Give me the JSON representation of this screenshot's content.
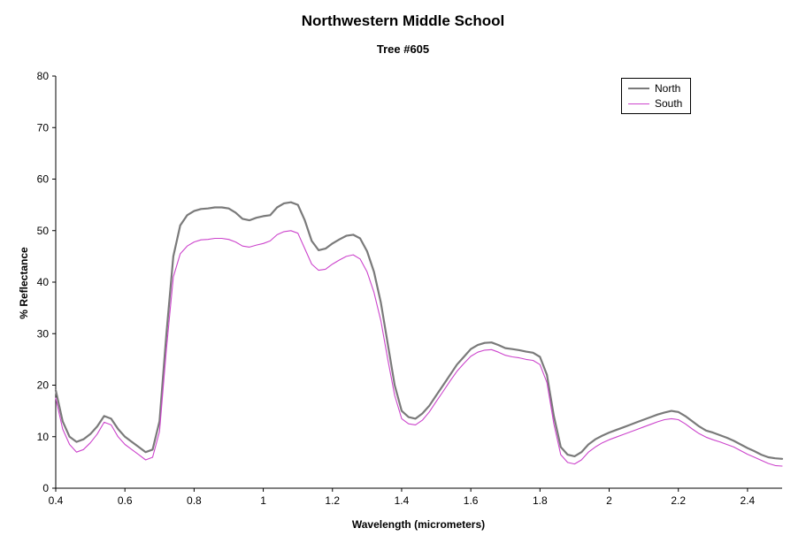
{
  "chart_data": {
    "type": "line",
    "title": "Northwestern Middle School",
    "subtitle": "Tree #605",
    "xlabel": "Wavelength (micrometers)",
    "ylabel": "% Reflectance",
    "xlim": [
      0.4,
      2.5
    ],
    "ylim": [
      0,
      80
    ],
    "x_ticks": [
      0.4,
      0.6,
      0.8,
      1,
      1.2,
      1.4,
      1.6,
      1.8,
      2,
      2.2,
      2.4
    ],
    "x_tick_labels": [
      "0.4",
      "0.6",
      "0.8",
      "1",
      "1.2",
      "1.4",
      "1.6",
      "1.8",
      "2",
      "2.2",
      "2.4"
    ],
    "y_ticks": [
      0,
      10,
      20,
      30,
      40,
      50,
      60,
      70,
      80
    ],
    "grid": false,
    "legend_position": "top-right",
    "axis_color": "#000000",
    "background_color": "#ffffff",
    "x": [
      0.4,
      0.42,
      0.44,
      0.46,
      0.48,
      0.5,
      0.52,
      0.54,
      0.56,
      0.58,
      0.6,
      0.62,
      0.64,
      0.66,
      0.68,
      0.7,
      0.72,
      0.74,
      0.76,
      0.78,
      0.8,
      0.82,
      0.84,
      0.86,
      0.88,
      0.9,
      0.92,
      0.94,
      0.96,
      0.98,
      1.0,
      1.02,
      1.04,
      1.06,
      1.08,
      1.1,
      1.12,
      1.14,
      1.16,
      1.18,
      1.2,
      1.22,
      1.24,
      1.26,
      1.28,
      1.3,
      1.32,
      1.34,
      1.36,
      1.38,
      1.4,
      1.42,
      1.44,
      1.46,
      1.48,
      1.5,
      1.52,
      1.54,
      1.56,
      1.58,
      1.6,
      1.62,
      1.64,
      1.66,
      1.68,
      1.7,
      1.72,
      1.74,
      1.76,
      1.78,
      1.8,
      1.82,
      1.84,
      1.86,
      1.88,
      1.9,
      1.92,
      1.94,
      1.96,
      1.98,
      2.0,
      2.02,
      2.04,
      2.06,
      2.08,
      2.1,
      2.12,
      2.14,
      2.16,
      2.18,
      2.2,
      2.22,
      2.24,
      2.26,
      2.28,
      2.3,
      2.32,
      2.34,
      2.36,
      2.38,
      2.4,
      2.42,
      2.44,
      2.46,
      2.48,
      2.5
    ],
    "series": [
      {
        "name": "North",
        "color": "#7a7a7a",
        "width": 2.2,
        "values": [
          19,
          13,
          10,
          9,
          9.5,
          10.5,
          12,
          14,
          13.5,
          11.5,
          10,
          9,
          8,
          7,
          7.5,
          13,
          30,
          45,
          51,
          53,
          53.8,
          54.2,
          54.3,
          54.5,
          54.5,
          54.3,
          53.5,
          52.3,
          52,
          52.5,
          52.8,
          53,
          54.5,
          55.3,
          55.5,
          55,
          52,
          48,
          46.2,
          46.5,
          47.5,
          48.3,
          49,
          49.2,
          48.5,
          46,
          42,
          36,
          28,
          20,
          15,
          13.8,
          13.5,
          14.5,
          16,
          18,
          20,
          22,
          24,
          25.5,
          27,
          27.8,
          28.2,
          28.3,
          27.8,
          27.2,
          27,
          26.8,
          26.5,
          26.3,
          25.5,
          22,
          14,
          8,
          6.5,
          6.2,
          7,
          8.5,
          9.5,
          10.2,
          10.8,
          11.3,
          11.8,
          12.3,
          12.8,
          13.3,
          13.8,
          14.3,
          14.7,
          15,
          14.8,
          14,
          13,
          12,
          11.2,
          10.8,
          10.3,
          9.8,
          9.2,
          8.5,
          7.8,
          7.2,
          6.5,
          6,
          5.8,
          5.7
        ]
      },
      {
        "name": "South",
        "color": "#cc44cc",
        "width": 1.1,
        "values": [
          17.5,
          11.5,
          8.5,
          7,
          7.5,
          8.8,
          10.5,
          12.8,
          12.3,
          10,
          8.5,
          7.5,
          6.5,
          5.5,
          6,
          11,
          27,
          41,
          45.5,
          47,
          47.8,
          48.2,
          48.3,
          48.5,
          48.5,
          48.3,
          47.8,
          47,
          46.8,
          47.2,
          47.5,
          48,
          49.2,
          49.8,
          50,
          49.5,
          46.5,
          43.5,
          42.3,
          42.5,
          43.5,
          44.3,
          45,
          45.3,
          44.5,
          42,
          38,
          32.5,
          25,
          18,
          13.5,
          12.5,
          12.3,
          13.2,
          14.8,
          16.8,
          18.8,
          20.8,
          22.7,
          24.2,
          25.6,
          26.4,
          26.8,
          26.9,
          26.4,
          25.8,
          25.5,
          25.3,
          25,
          24.8,
          24,
          20.5,
          12.5,
          6.5,
          5,
          4.7,
          5.5,
          7,
          8,
          8.8,
          9.4,
          9.9,
          10.4,
          10.9,
          11.4,
          11.9,
          12.4,
          12.9,
          13.3,
          13.5,
          13.3,
          12.5,
          11.5,
          10.6,
          9.9,
          9.4,
          9,
          8.5,
          8,
          7.3,
          6.6,
          6,
          5.4,
          4.8,
          4.4,
          4.3
        ]
      }
    ]
  }
}
